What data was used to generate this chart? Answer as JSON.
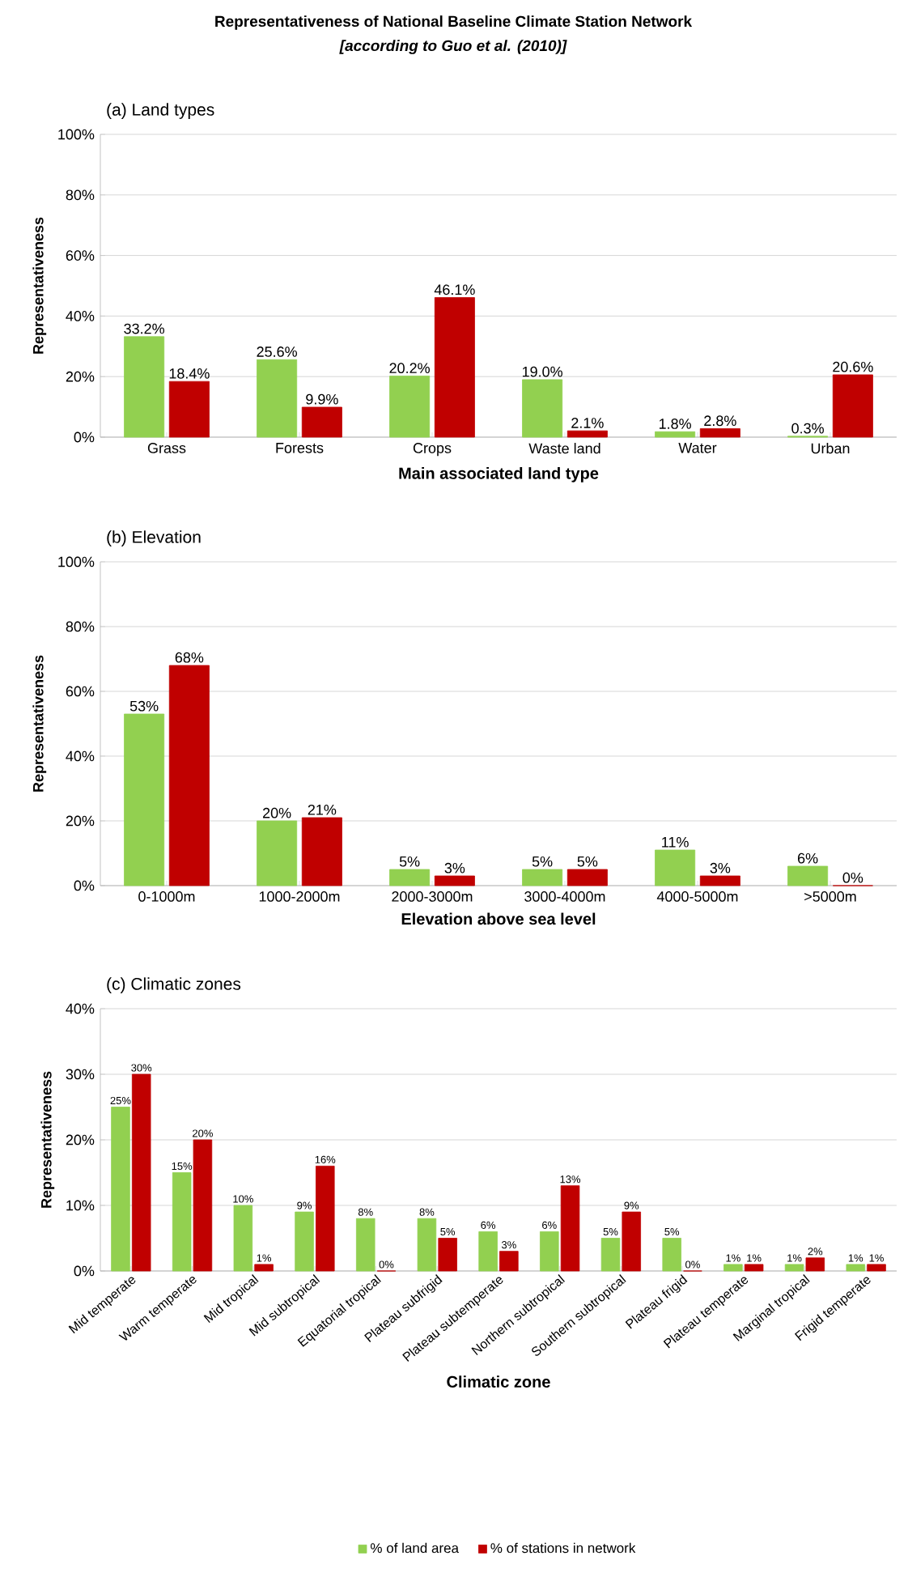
{
  "chart_data": [
    {
      "type": "bar",
      "title": "(a) Land types",
      "annotations": [
        "Representativeness of National Baseline Climate Station Network",
        "[according to Guo et al. (2010)]"
      ],
      "xlabel": "Main associated land type",
      "ylabel": "Representativeness",
      "categories": [
        "Grass",
        "Forests",
        "Crops",
        "Waste land",
        "Water",
        "Urban"
      ],
      "series": [
        {
          "color": "#92d050",
          "values": [
            33.2,
            25.6,
            20.2,
            19.0,
            1.8,
            0.3
          ],
          "value_labels": [
            "33.2%",
            "25.6%",
            "20.2%",
            "19.0%",
            "1.8%",
            "0.3%"
          ]
        },
        {
          "color": "#c00000",
          "values": [
            18.4,
            9.9,
            46.1,
            2.1,
            2.8,
            20.6
          ],
          "value_labels": [
            "18.4%",
            "9.9%",
            "46.1%",
            "2.1%",
            "2.8%",
            "20.6%"
          ]
        }
      ],
      "ylim": [
        0,
        100
      ],
      "yticks": [
        {
          "value": 0,
          "label": "0%"
        },
        {
          "value": 20,
          "label": "20%"
        },
        {
          "value": 40,
          "label": "40%"
        },
        {
          "value": 60,
          "label": "60%"
        },
        {
          "value": 80,
          "label": "80%"
        },
        {
          "value": 100,
          "label": "100%"
        }
      ],
      "grid": "y"
    },
    {
      "type": "bar",
      "title": "(b) Elevation",
      "xlabel": "Elevation above sea level",
      "ylabel": "Representativeness",
      "categories": [
        "0-1000m",
        "1000-2000m",
        "2000-3000m",
        "3000-4000m",
        "4000-5000m",
        ">5000m"
      ],
      "series": [
        {
          "color": "#92d050",
          "values": [
            53,
            20,
            5,
            5,
            11,
            6
          ],
          "value_labels": [
            "53%",
            "20%",
            "5%",
            "5%",
            "11%",
            "6%"
          ]
        },
        {
          "color": "#c00000",
          "values": [
            68,
            21,
            3,
            5,
            3,
            0
          ],
          "value_labels": [
            "68%",
            "21%",
            "3%",
            "5%",
            "3%",
            "0%"
          ]
        }
      ],
      "ylim": [
        0,
        100
      ],
      "yticks": [
        {
          "value": 0,
          "label": "0%"
        },
        {
          "value": 20,
          "label": "20%"
        },
        {
          "value": 40,
          "label": "40%"
        },
        {
          "value": 60,
          "label": "60%"
        },
        {
          "value": 80,
          "label": "80%"
        },
        {
          "value": 100,
          "label": "100%"
        }
      ],
      "grid": "y"
    },
    {
      "type": "bar",
      "title": "(c) Climatic zones",
      "xlabel": "Climatic zone",
      "ylabel": "Representativeness",
      "categories": [
        "Mid temperate",
        "Warm temperate",
        "Mid tropical",
        "Mid subtropical",
        "Equatorial tropical",
        "Plateau subfrigid",
        "Plateau subtemperate",
        "Northern subtropical",
        "Southern subtropical",
        "Plateau frigid",
        "Plateau temperate",
        "Marginal tropical",
        "Frigid temperate"
      ],
      "series": [
        {
          "name": "% of land area",
          "color": "#92d050",
          "values": [
            25,
            15,
            10,
            9,
            8,
            8,
            6,
            6,
            5,
            5,
            1,
            1,
            1
          ],
          "value_labels": [
            "25%",
            "15%",
            "10%",
            "9%",
            "8%",
            "8%",
            "6%",
            "6%",
            "5%",
            "5%",
            "1%",
            "1%",
            "1%"
          ]
        },
        {
          "name": "% of stations in network",
          "color": "#c00000",
          "values": [
            30,
            20,
            1,
            16,
            0,
            5,
            3,
            13,
            9,
            0,
            1,
            2,
            1
          ],
          "value_labels": [
            "30%",
            "20%",
            "1%",
            "16%",
            "0%",
            "5%",
            "3%",
            "13%",
            "9%",
            "0%",
            "1%",
            "2%",
            "1%"
          ]
        }
      ],
      "ylim": [
        0,
        40
      ],
      "yticks": [
        {
          "value": 0,
          "label": "0%"
        },
        {
          "value": 10,
          "label": "10%"
        },
        {
          "value": 20,
          "label": "20%"
        },
        {
          "value": 30,
          "label": "30%"
        },
        {
          "value": 40,
          "label": "40%"
        }
      ],
      "grid": "y",
      "legend": "bottom"
    }
  ]
}
